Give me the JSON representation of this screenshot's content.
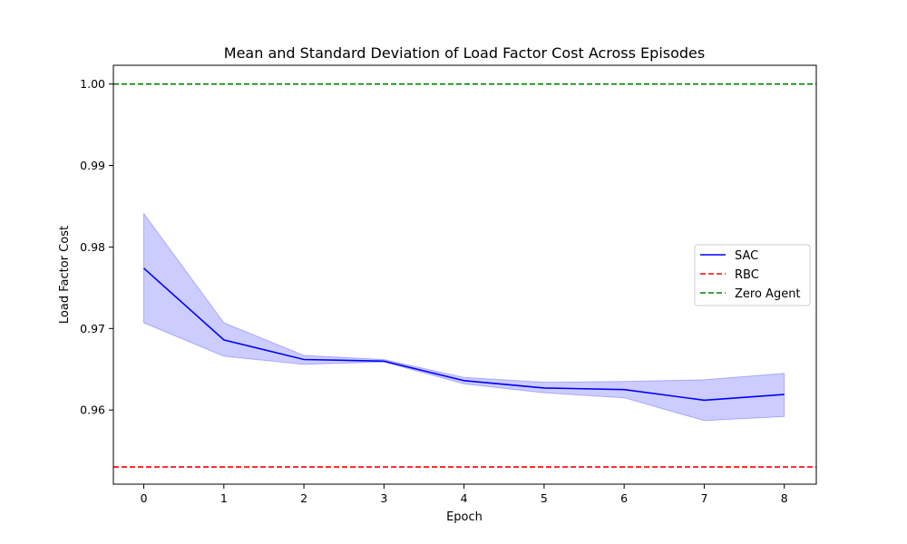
{
  "chart_data": {
    "type": "line",
    "title": "Mean and Standard Deviation of Load Factor Cost Across Episodes",
    "xlabel": "Epoch",
    "ylabel": "Load Factor Cost",
    "xlim": [
      -0.38,
      8.4
    ],
    "ylim": [
      0.9509,
      1.0023
    ],
    "xticks": [
      0,
      1,
      2,
      3,
      4,
      5,
      6,
      7,
      8
    ],
    "yticks": [
      0.96,
      0.97,
      0.98,
      0.99,
      1.0
    ],
    "ytick_labels": [
      "0.96",
      "0.97",
      "0.98",
      "0.99",
      "1.00"
    ],
    "grid": false,
    "legend_position": "center-right",
    "series": [
      {
        "name": "SAC",
        "color": "#0000ff",
        "style": "solid",
        "x": [
          0,
          1,
          2,
          3,
          4,
          5,
          6,
          7,
          8
        ],
        "mean": [
          0.9774,
          0.9686,
          0.9662,
          0.966,
          0.9636,
          0.9627,
          0.9625,
          0.9612,
          0.9619
        ],
        "upper": [
          0.9841,
          0.9707,
          0.9667,
          0.9662,
          0.964,
          0.9634,
          0.9635,
          0.9637,
          0.9645
        ],
        "lower": [
          0.9707,
          0.9666,
          0.9656,
          0.9659,
          0.9632,
          0.9621,
          0.9615,
          0.9587,
          0.9592
        ],
        "band_color": "#0000ff"
      },
      {
        "name": "RBC",
        "color": "#ff0000",
        "style": "dashed",
        "y": 0.953
      },
      {
        "name": "Zero Agent",
        "color": "#008000",
        "style": "dashed",
        "y": 1.0
      }
    ]
  }
}
